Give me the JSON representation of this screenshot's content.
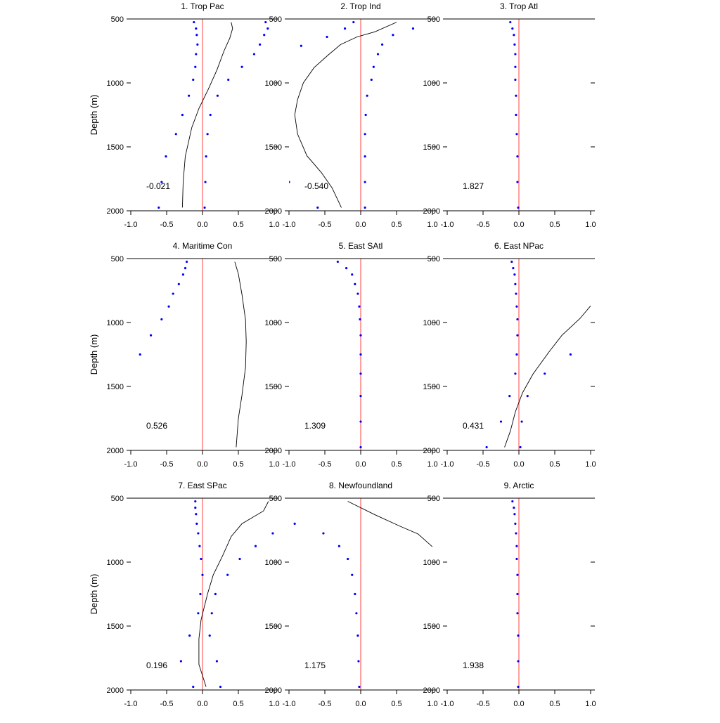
{
  "figure": {
    "ylabel": "Depth (m)",
    "y_ticks": [
      "500",
      "1000",
      "1500",
      "2000"
    ],
    "x_ticks": [
      "-1.0",
      "-0.5",
      "0.0",
      "0.5",
      "1.0"
    ]
  },
  "colors": {
    "zero_line": "#ff8080",
    "dots": "#0000ff",
    "curve": "#000000"
  },
  "chart_data": [
    {
      "type": "scatter",
      "title": "1. Trop Pac",
      "annotation": "-0.021",
      "xlim": [
        -1,
        1
      ],
      "ylim": [
        500,
        2000
      ],
      "y_reversed": true,
      "depth_levels": [
        525,
        575,
        625,
        700,
        775,
        875,
        975,
        1100,
        1250,
        1400,
        1575,
        1775,
        1975
      ],
      "dots_right": [
        0.88,
        0.91,
        0.86,
        0.8,
        0.72,
        0.55,
        0.36,
        0.21,
        0.11,
        0.07,
        0.05,
        0.04,
        0.03
      ],
      "dots_left": [
        -0.12,
        -0.09,
        -0.08,
        -0.07,
        -0.09,
        -0.1,
        -0.13,
        -0.19,
        -0.28,
        -0.37,
        -0.51,
        -0.57,
        -0.61
      ],
      "curve": [
        [
          0.4,
          525
        ],
        [
          0.42,
          575
        ],
        [
          0.38,
          650
        ],
        [
          0.3,
          750
        ],
        [
          0.2,
          900
        ],
        [
          0.08,
          1050
        ],
        [
          -0.05,
          1200
        ],
        [
          -0.15,
          1350
        ],
        [
          -0.24,
          1575
        ],
        [
          -0.27,
          1775
        ],
        [
          -0.28,
          1975
        ]
      ]
    },
    {
      "type": "scatter",
      "title": "2. Trop Ind",
      "annotation": "-0.540",
      "xlim": [
        -1,
        1
      ],
      "ylim": [
        500,
        2000
      ],
      "y_reversed": true,
      "depth_levels": [
        525,
        575,
        625,
        700,
        775,
        875,
        975,
        1100,
        1250,
        1400,
        1575,
        1775,
        1975
      ],
      "dots_right": [
        -0.1,
        0.73,
        0.45,
        0.3,
        0.24,
        0.18,
        0.15,
        0.09,
        0.07,
        0.06,
        0.06,
        0.06,
        0.06
      ],
      "dots_left": [
        -0.22,
        -0.47,
        -0.83,
        -1.0,
        -0.6
      ],
      "dots_left_depths": [
        575,
        640,
        710,
        1775,
        1975
      ],
      "curve": [
        [
          0.5,
          525
        ],
        [
          0.2,
          600
        ],
        [
          -0.05,
          640
        ],
        [
          -0.28,
          700
        ],
        [
          -0.45,
          780
        ],
        [
          -0.65,
          880
        ],
        [
          -0.8,
          1000
        ],
        [
          -0.88,
          1130
        ],
        [
          -0.92,
          1250
        ],
        [
          -0.88,
          1400
        ],
        [
          -0.75,
          1570
        ],
        [
          -0.55,
          1700
        ],
        [
          -0.4,
          1820
        ],
        [
          -0.27,
          1975
        ]
      ]
    },
    {
      "type": "scatter",
      "title": "3. Trop Atl",
      "annotation": "1.827",
      "xlim": [
        -1,
        1
      ],
      "ylim": [
        500,
        2000
      ],
      "y_reversed": true,
      "depth_levels": [
        525,
        575,
        625,
        700,
        775,
        875,
        975,
        1100,
        1250,
        1400,
        1575,
        1775,
        1975
      ],
      "dots_right": [
        -0.12,
        -0.09,
        -0.07,
        -0.06,
        -0.05,
        -0.05,
        -0.05,
        -0.04,
        -0.04,
        -0.03,
        -0.02,
        -0.02,
        -0.01
      ],
      "dots_left": [],
      "curve": []
    },
    {
      "type": "scatter",
      "title": "4. Maritime Con",
      "annotation": "0.526",
      "xlim": [
        -1,
        1
      ],
      "ylim": [
        500,
        2000
      ],
      "y_reversed": true,
      "depth_levels": [
        525,
        575,
        625,
        700,
        775,
        875,
        975,
        1100,
        1250
      ],
      "dots_right": [
        -0.22,
        -0.24,
        -0.27,
        -0.33,
        -0.41,
        -0.47,
        -0.57,
        -0.72,
        -0.87
      ],
      "dots_left": [],
      "curve": [
        [
          0.45,
          525
        ],
        [
          0.5,
          620
        ],
        [
          0.55,
          780
        ],
        [
          0.6,
          980
        ],
        [
          0.61,
          1150
        ],
        [
          0.6,
          1350
        ],
        [
          0.55,
          1570
        ],
        [
          0.5,
          1750
        ],
        [
          0.47,
          1975
        ]
      ]
    },
    {
      "type": "scatter",
      "title": "5. East SAtl",
      "annotation": "1.309",
      "xlim": [
        -1,
        1
      ],
      "ylim": [
        500,
        2000
      ],
      "y_reversed": true,
      "depth_levels": [
        525,
        575,
        625,
        700,
        775,
        875,
        975,
        1100,
        1250,
        1400,
        1575,
        1775,
        1975
      ],
      "dots_right": [
        -0.32,
        -0.2,
        -0.12,
        -0.08,
        -0.04,
        -0.02,
        -0.01,
        0.0,
        0.0,
        0.0,
        0.0,
        0.0,
        0.0
      ],
      "dots_left": [],
      "curve": []
    },
    {
      "type": "scatter",
      "title": "6. East NPac",
      "annotation": "0.431",
      "xlim": [
        -1,
        1
      ],
      "ylim": [
        500,
        2000
      ],
      "y_reversed": true,
      "depth_levels": [
        525,
        575,
        625,
        700,
        775,
        875,
        975,
        1100,
        1250,
        1400,
        1575,
        1775,
        1975
      ],
      "dots_right": [
        -0.1,
        -0.08,
        -0.06,
        -0.05,
        -0.04,
        -0.03,
        -0.02,
        -0.02,
        -0.03,
        -0.05,
        -0.13,
        -0.25,
        -0.45
      ],
      "dots_left": [
        0.72,
        0.36,
        0.12,
        0.04,
        0.02
      ],
      "dots_left_depths": [
        1250,
        1400,
        1575,
        1775,
        1975
      ],
      "curve": [
        [
          1.0,
          870
        ],
        [
          0.85,
          970
        ],
        [
          0.6,
          1100
        ],
        [
          0.42,
          1230
        ],
        [
          0.2,
          1400
        ],
        [
          0.05,
          1550
        ],
        [
          -0.05,
          1700
        ],
        [
          -0.12,
          1850
        ],
        [
          -0.2,
          1975
        ]
      ]
    },
    {
      "type": "scatter",
      "title": "7. East SPac",
      "annotation": "0.196",
      "xlim": [
        -1,
        1
      ],
      "ylim": [
        500,
        2000
      ],
      "y_reversed": true,
      "depth_levels": [
        525,
        575,
        625,
        700,
        775,
        875,
        975,
        1100,
        1250,
        1400,
        1575,
        1775,
        1975
      ],
      "dots_right": [
        -0.1,
        -0.1,
        -0.09,
        -0.08,
        -0.06,
        -0.04,
        -0.02,
        0.0,
        -0.03,
        -0.06,
        -0.18,
        -0.3,
        -0.13
      ],
      "dots_left": [
        0.98,
        0.74,
        0.52,
        0.35,
        0.18,
        0.13,
        0.1,
        0.2,
        0.25
      ],
      "dots_left_depths": [
        775,
        875,
        975,
        1100,
        1250,
        1400,
        1575,
        1775,
        1975
      ],
      "curve": [
        [
          0.92,
          525
        ],
        [
          0.85,
          600
        ],
        [
          0.55,
          700
        ],
        [
          0.4,
          800
        ],
        [
          0.28,
          950
        ],
        [
          0.15,
          1100
        ],
        [
          0.07,
          1250
        ],
        [
          -0.02,
          1450
        ],
        [
          -0.05,
          1600
        ],
        [
          -0.05,
          1800
        ],
        [
          0.05,
          1975
        ]
      ]
    },
    {
      "type": "scatter",
      "title": "8. Newfoundland",
      "annotation": "1.175",
      "xlim": [
        -1,
        1
      ],
      "ylim": [
        500,
        2000
      ],
      "y_reversed": true,
      "depth_levels": [
        700,
        775,
        875,
        975,
        1100,
        1250,
        1400,
        1575,
        1775,
        1975
      ],
      "dots_right": [
        -0.92,
        -0.52,
        -0.3,
        -0.18,
        -0.12,
        -0.08,
        -0.06,
        -0.04,
        -0.03,
        -0.02
      ],
      "dots_left": [],
      "curve": [
        [
          -0.18,
          525
        ],
        [
          0.2,
          630
        ],
        [
          0.55,
          720
        ],
        [
          0.8,
          780
        ],
        [
          1.0,
          880
        ]
      ]
    },
    {
      "type": "scatter",
      "title": "9. Arctic",
      "annotation": "1.938",
      "xlim": [
        -1,
        1
      ],
      "ylim": [
        500,
        2000
      ],
      "y_reversed": true,
      "depth_levels": [
        525,
        575,
        625,
        700,
        775,
        875,
        975,
        1100,
        1250,
        1400,
        1575,
        1775,
        1975
      ],
      "dots_right": [
        -0.09,
        -0.07,
        -0.06,
        -0.05,
        -0.04,
        -0.03,
        -0.03,
        -0.02,
        -0.02,
        -0.02,
        -0.01,
        -0.01,
        -0.01
      ],
      "dots_left": [],
      "curve": []
    }
  ]
}
